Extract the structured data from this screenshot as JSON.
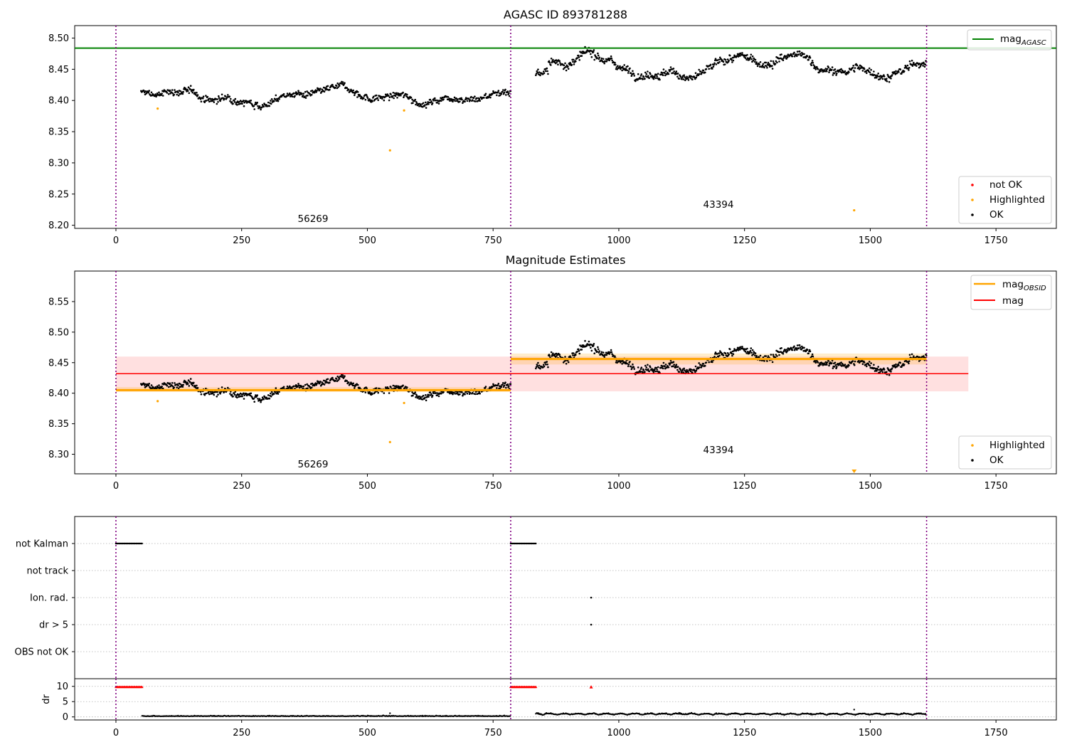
{
  "chart_data": [
    {
      "type": "scatter",
      "title": "AGASC ID 893781288",
      "xlim": [
        -82,
        1870
      ],
      "ylim": [
        8.195,
        8.52
      ],
      "xticks": [
        "0",
        "250",
        "500",
        "750",
        "1000",
        "1250",
        "1500",
        "1750"
      ],
      "yticks": [
        "8.20",
        "8.25",
        "8.30",
        "8.35",
        "8.40",
        "8.45",
        "8.50"
      ],
      "vlines": [
        0,
        785,
        1612
      ],
      "hline": {
        "name": "mag",
        "subscript": "AGASC",
        "y": 8.484,
        "color": "#008000"
      },
      "segments": [
        {
          "label": "56269",
          "x_range": [
            50,
            785
          ],
          "mean": 8.407,
          "label_y": 8.21
        },
        {
          "label": "43394",
          "x_range": [
            835,
            1612
          ],
          "mean": 8.456,
          "label_y": 8.232
        }
      ],
      "highlighted_points": [
        [
          83,
          8.387
        ],
        [
          545,
          8.32
        ],
        [
          573,
          8.384
        ],
        [
          1468,
          8.224
        ]
      ],
      "legend": {
        "position": "top-right",
        "entries": [
          {
            "label": "mag",
            "subscript": "AGASC"
          }
        ]
      },
      "legend2": {
        "position": "bottom-right",
        "entries": [
          {
            "label": "not OK",
            "color": "#ff0000"
          },
          {
            "label": "Highlighted",
            "color": "#ffa500"
          },
          {
            "label": "OK",
            "color": "#000000"
          }
        ]
      }
    },
    {
      "type": "scatter",
      "title": "Magnitude Estimates",
      "xlim": [
        -82,
        1870
      ],
      "ylim": [
        8.268,
        8.6
      ],
      "xticks": [
        "0",
        "250",
        "500",
        "750",
        "1000",
        "1250",
        "1500",
        "1750"
      ],
      "yticks": [
        "8.30",
        "8.35",
        "8.40",
        "8.45",
        "8.50",
        "8.55"
      ],
      "vlines": [
        0,
        785,
        1612
      ],
      "mag": {
        "y": 8.432,
        "band": [
          8.403,
          8.46
        ],
        "x_range": [
          0,
          1695
        ],
        "color": "#ff0000"
      },
      "mag_obsid": [
        {
          "x_range": [
            0,
            785
          ],
          "y": 8.405,
          "band": [
            8.402,
            8.41
          ]
        },
        {
          "x_range": [
            785,
            1612
          ],
          "y": 8.456,
          "band": [
            8.447,
            8.465
          ]
        }
      ],
      "segment_labels": [
        {
          "label": "56269",
          "x": 390,
          "y": 8.28
        },
        {
          "label": "43394",
          "x": 1195,
          "y": 8.305
        }
      ],
      "highlighted_points": [
        [
          83,
          8.387
        ],
        [
          545,
          8.32
        ],
        [
          573,
          8.384
        ]
      ],
      "offscale_marker": {
        "x": 1468
      },
      "legend": {
        "position": "top-right",
        "entries": [
          {
            "label": "mag",
            "subscript": "OBSID",
            "color": "#ffa500"
          },
          {
            "label": "mag",
            "color": "#ff0000"
          }
        ]
      },
      "legend2": {
        "position": "bottom-right",
        "entries": [
          {
            "label": "Highlighted",
            "color": "#ffa500"
          },
          {
            "label": "OK",
            "color": "#000000"
          }
        ]
      }
    },
    {
      "type": "scatter",
      "title": "",
      "xlim": [
        -82,
        1870
      ],
      "categories": [
        "not Kalman",
        "not track",
        "Ion. rad.",
        "dr > 5",
        "OBS not OK"
      ],
      "vlines": [
        0,
        785,
        1612
      ],
      "flags": [
        {
          "category": "not Kalman",
          "x_ranges": [
            [
              0,
              52
            ],
            [
              785,
              835
            ]
          ]
        },
        {
          "category": "Ion. rad.",
          "x_points": [
            945
          ]
        },
        {
          "category": "dr > 5",
          "x_points": [
            945
          ]
        }
      ]
    },
    {
      "type": "scatter",
      "ylabel": "dr",
      "xlim": [
        -82,
        1870
      ],
      "ylim": [
        -1,
        12.5
      ],
      "yticks": [
        "0",
        "5",
        "10"
      ],
      "xticks": [
        "0",
        "250",
        "500",
        "750",
        "1000",
        "1250",
        "1500",
        "1750"
      ],
      "vlines": [
        0,
        785,
        1612
      ],
      "clipped_ranges": [
        [
          0,
          52
        ],
        [
          785,
          835
        ]
      ],
      "clipped_points": [
        945
      ],
      "spike_points": [
        [
          545,
          1.2
        ],
        [
          1468,
          2.4
        ]
      ]
    }
  ]
}
